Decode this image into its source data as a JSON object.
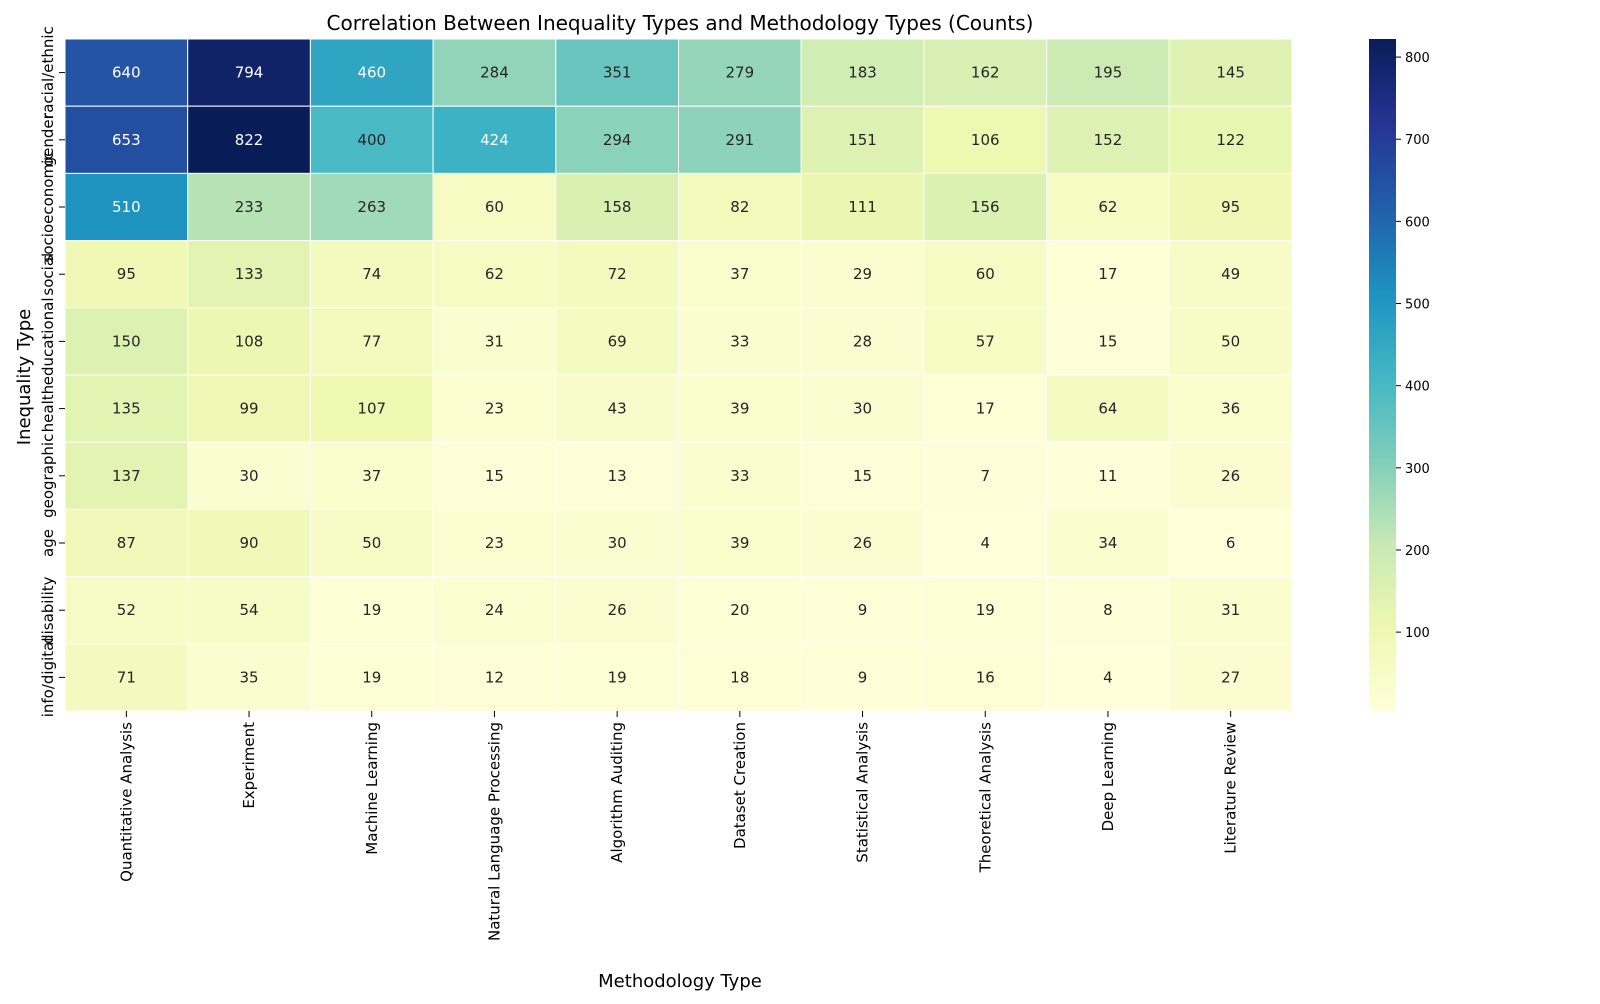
{
  "chart_data": {
    "type": "heatmap",
    "title": "Correlation Between Inequality Types and Methodology Types (Counts)",
    "xlabel": "Methodology Type",
    "ylabel": "Inequality Type",
    "x_categories": [
      "Quantitative Analysis",
      "Experiment",
      "Machine Learning",
      "Natural Language Processing",
      "Algorithm Auditing",
      "Dataset Creation",
      "Statistical Analysis",
      "Theoretical Analysis",
      "Deep Learning",
      "Literature Review"
    ],
    "y_categories": [
      "racial/ethnic",
      "gender",
      "socioeconomic",
      "social",
      "educational",
      "health",
      "geographic",
      "age",
      "disability",
      "info/digital"
    ],
    "values": [
      [
        640,
        794,
        460,
        284,
        351,
        279,
        183,
        162,
        195,
        145
      ],
      [
        653,
        822,
        400,
        424,
        294,
        291,
        151,
        106,
        152,
        122
      ],
      [
        510,
        233,
        263,
        60,
        158,
        82,
        111,
        156,
        62,
        95
      ],
      [
        95,
        133,
        74,
        62,
        72,
        37,
        29,
        60,
        17,
        49
      ],
      [
        150,
        108,
        77,
        31,
        69,
        33,
        28,
        57,
        15,
        50
      ],
      [
        135,
        99,
        107,
        23,
        43,
        39,
        30,
        17,
        64,
        36
      ],
      [
        137,
        30,
        37,
        15,
        13,
        33,
        15,
        7,
        11,
        26
      ],
      [
        87,
        90,
        50,
        23,
        30,
        39,
        26,
        4,
        34,
        6
      ],
      [
        52,
        54,
        19,
        24,
        26,
        20,
        9,
        19,
        8,
        31
      ],
      [
        71,
        35,
        19,
        12,
        19,
        18,
        9,
        16,
        4,
        27
      ]
    ],
    "colormap": "YlGnBu",
    "colorbar": {
      "min": 4,
      "max": 822,
      "ticks": [
        100,
        200,
        300,
        400,
        500,
        600,
        700,
        800
      ]
    },
    "annotations": true,
    "grid": false,
    "legend": "colorbar-right"
  }
}
